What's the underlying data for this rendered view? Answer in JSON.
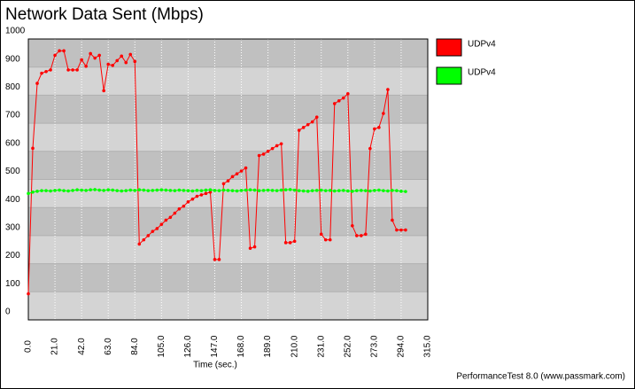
{
  "chart_data": {
    "type": "line",
    "title": "Network Data Sent (Mbps)",
    "x_label": "Time (sec.)",
    "footer": "PerformanceTest 8.0 (www.passmark.com)",
    "x": [
      0,
      3.5,
      7,
      10.5,
      14,
      17.5,
      21,
      24.5,
      28,
      31.5,
      35,
      38.5,
      42,
      45.5,
      49,
      52.5,
      56,
      59.5,
      63,
      66.5,
      70,
      73.5,
      77,
      80.5,
      84,
      87.5,
      91,
      94.5,
      98,
      101.5,
      105,
      108.5,
      112,
      115.5,
      119,
      122.5,
      126,
      129.5,
      133,
      136.5,
      140,
      143.5,
      147,
      150.5,
      154,
      157.5,
      161,
      164.5,
      168,
      171.5,
      175,
      178.5,
      182,
      185.5,
      189,
      192.5,
      196,
      199.5,
      203,
      206.5,
      210,
      213.5,
      217,
      220.5,
      224,
      227.5,
      231,
      234.5,
      238,
      241.5,
      245,
      248.5,
      252,
      255.5,
      259,
      262.5,
      266,
      269.5,
      273,
      276.5,
      280,
      283.5,
      287,
      290.5,
      294,
      297.5
    ],
    "series": [
      {
        "name": "UDPv4",
        "color": "#ff0000",
        "values": [
          93,
          611,
          842,
          878,
          884,
          890,
          942,
          958,
          958,
          890,
          890,
          890,
          926,
          903,
          948,
          932,
          942,
          816,
          910,
          906,
          923,
          939,
          916,
          945,
          920,
          270,
          285,
          300,
          315,
          325,
          340,
          355,
          365,
          380,
          395,
          405,
          420,
          430,
          440,
          445,
          450,
          455,
          215,
          215,
          485,
          495,
          510,
          520,
          530,
          541,
          255,
          260,
          585,
          590,
          600,
          610,
          620,
          627,
          275,
          275,
          280,
          675,
          685,
          695,
          705,
          722,
          305,
          285,
          285,
          770,
          780,
          790,
          805,
          335,
          300,
          300,
          305,
          610,
          680,
          685,
          735,
          820,
          355,
          320,
          320,
          320
        ]
      },
      {
        "name": "UDPv4",
        "color": "#00ff00",
        "values": [
          450,
          455,
          458,
          460,
          460,
          459,
          461,
          462,
          460,
          459,
          461,
          463,
          462,
          461,
          463,
          464,
          462,
          461,
          463,
          462,
          460,
          459,
          460,
          462,
          461,
          463,
          462,
          460,
          461,
          462,
          463,
          462,
          461,
          460,
          462,
          461,
          460,
          459,
          461,
          460,
          462,
          463,
          461,
          460,
          462,
          461,
          460,
          459,
          461,
          462,
          463,
          462,
          460,
          461,
          462,
          461,
          460,
          462,
          463,
          464,
          462,
          460,
          459,
          458,
          460,
          461,
          462,
          460,
          461,
          459,
          460,
          461,
          459,
          458,
          460,
          461,
          460,
          459,
          461,
          462,
          460,
          459,
          461,
          460,
          458,
          457
        ]
      }
    ],
    "xlim": [
      0,
      315
    ],
    "xticks": [
      {
        "value": 0,
        "label": "0.0"
      },
      {
        "value": 21,
        "label": "21.0"
      },
      {
        "value": 42,
        "label": "42.0"
      },
      {
        "value": 63,
        "label": "63.0"
      },
      {
        "value": 84,
        "label": "84.0"
      },
      {
        "value": 105,
        "label": "105.0"
      },
      {
        "value": 126,
        "label": "126.0"
      },
      {
        "value": 147,
        "label": "147.0"
      },
      {
        "value": 168,
        "label": "168.0"
      },
      {
        "value": 189,
        "label": "189.0"
      },
      {
        "value": 210,
        "label": "210.0"
      },
      {
        "value": 231,
        "label": "231.0"
      },
      {
        "value": 252,
        "label": "252.0"
      },
      {
        "value": 273,
        "label": "273.0"
      },
      {
        "value": 294,
        "label": "294.0"
      },
      {
        "value": 315,
        "label": "315.0"
      }
    ],
    "ylim": [
      0,
      1000
    ],
    "yticks": [
      0,
      100,
      200,
      300,
      400,
      500,
      600,
      700,
      800,
      900,
      1000
    ],
    "grid": true
  }
}
